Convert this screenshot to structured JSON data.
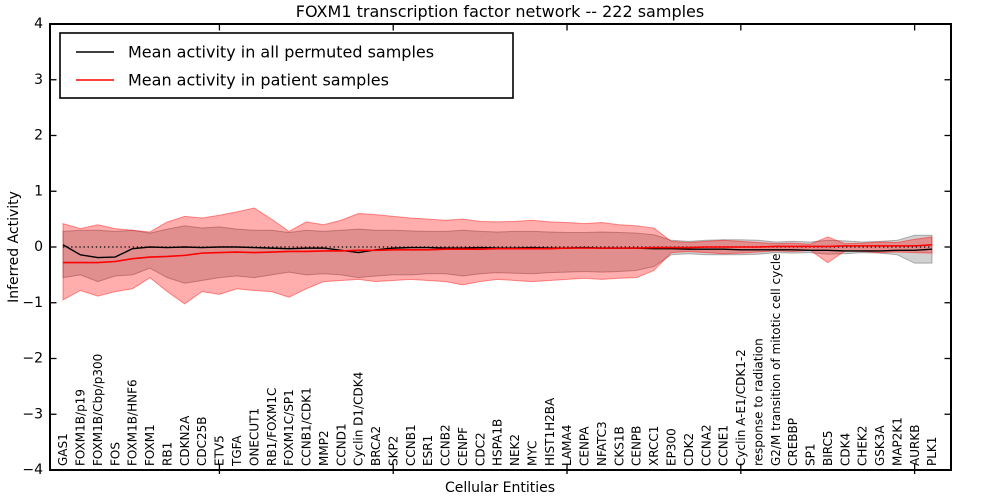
{
  "chart_data": {
    "type": "line",
    "title": "FOXM1 transcription factor network -- 222 samples",
    "sample_count": 222,
    "xlabel": "Cellular Entities",
    "ylabel": "Inferred Activity",
    "ylim": [
      -4,
      4
    ],
    "grid": false,
    "legend_position": "upper left",
    "ytick_values": [
      4,
      3,
      2,
      1,
      0,
      -1,
      -2,
      -3,
      -4
    ],
    "ytick_labels": [
      "4",
      "3",
      "2",
      "1",
      "0",
      "−1",
      "−2",
      "−3",
      "−4"
    ],
    "categories": [
      "GAS1",
      "FOXM1B/p19",
      "FOXM1B/Cbp/p300",
      "FOS",
      "FOXM1B/HNF6",
      "FOXM1",
      "RB1",
      "CDKN2A",
      "CDC25B",
      "ETV5",
      "TGFA",
      "ONECUT1",
      "RB1/FOXM1C",
      "FOXM1C/SP1",
      "CCNB1/CDK1",
      "MMP2",
      "CCND1",
      "Cyclin D1/CDK4",
      "BRCA2",
      "SKP2",
      "CCNB1",
      "ESR1",
      "CCNB2",
      "CENPF",
      "CDC2",
      "HSPA1B",
      "NEK2",
      "MYC",
      "HIST1H2BA",
      "LAMA4",
      "CENPA",
      "NFATC3",
      "CKS1B",
      "CENPB",
      "XRCC1",
      "EP300",
      "CDK2",
      "CCNA2",
      "CCNE1",
      "Cyclin A-E1/CDK1-2",
      "response to radiation",
      "G2/M transition of mitotic cell cycle",
      "CREBBP",
      "SP1",
      "BIRC5",
      "CDK4",
      "CHEK2",
      "GSK3A",
      "MAP2K1",
      "AURKB",
      "PLK1"
    ],
    "major_xtick_positions": [
      10,
      20,
      30,
      40,
      50
    ],
    "zero_line": {
      "value": 0,
      "style": "dotted",
      "color": "#000000"
    },
    "series": [
      {
        "name": "Mean activity in all permuted samples",
        "color": "#000000",
        "line_width": 1.4,
        "values": [
          0.04,
          -0.14,
          -0.19,
          -0.18,
          -0.03,
          0.0,
          -0.01,
          0.0,
          -0.01,
          0.0,
          0.0,
          -0.01,
          -0.02,
          -0.03,
          -0.02,
          -0.02,
          -0.06,
          -0.1,
          -0.05,
          -0.02,
          -0.01,
          -0.01,
          -0.02,
          -0.02,
          -0.01,
          -0.02,
          -0.02,
          -0.01,
          -0.02,
          -0.02,
          -0.01,
          -0.02,
          -0.02,
          -0.02,
          -0.03,
          -0.03,
          -0.04,
          -0.04,
          -0.04,
          -0.05,
          -0.05,
          -0.05,
          -0.05,
          -0.06,
          -0.06,
          -0.07,
          -0.07,
          -0.07,
          -0.06,
          -0.06,
          -0.04
        ]
      },
      {
        "name": "Mean activity in patient samples",
        "color": "#ff0000",
        "line_width": 1.6,
        "values": [
          -0.28,
          -0.28,
          -0.28,
          -0.26,
          -0.21,
          -0.18,
          -0.17,
          -0.15,
          -0.11,
          -0.1,
          -0.09,
          -0.1,
          -0.09,
          -0.08,
          -0.08,
          -0.07,
          -0.07,
          -0.06,
          -0.06,
          -0.05,
          -0.05,
          -0.05,
          -0.04,
          -0.04,
          -0.04,
          -0.03,
          -0.03,
          -0.03,
          -0.03,
          -0.02,
          -0.02,
          -0.02,
          -0.02,
          -0.02,
          -0.01,
          -0.01,
          -0.01,
          0.0,
          0.0,
          0.0,
          0.0,
          0.01,
          0.01,
          0.01,
          0.01,
          0.02,
          0.02,
          0.02,
          0.02,
          0.02,
          0.04
        ]
      }
    ],
    "bands": [
      {
        "name": "permuted-samples-range",
        "color": "#000000",
        "alpha": 0.18,
        "upper": [
          0.28,
          0.3,
          0.3,
          0.28,
          0.3,
          0.25,
          0.32,
          0.38,
          0.34,
          0.36,
          0.32,
          0.3,
          0.3,
          0.26,
          0.3,
          0.28,
          0.3,
          0.32,
          0.3,
          0.3,
          0.29,
          0.28,
          0.28,
          0.3,
          0.28,
          0.27,
          0.28,
          0.28,
          0.27,
          0.26,
          0.26,
          0.27,
          0.26,
          0.25,
          0.22,
          0.12,
          0.1,
          0.12,
          0.13,
          0.13,
          0.12,
          0.09,
          0.1,
          0.09,
          0.12,
          0.11,
          0.09,
          0.1,
          0.12,
          0.21,
          0.21
        ],
        "lower": [
          -0.55,
          -0.5,
          -0.62,
          -0.52,
          -0.5,
          -0.38,
          -0.55,
          -0.65,
          -0.6,
          -0.55,
          -0.52,
          -0.55,
          -0.5,
          -0.45,
          -0.5,
          -0.48,
          -0.5,
          -0.55,
          -0.52,
          -0.5,
          -0.5,
          -0.48,
          -0.48,
          -0.52,
          -0.48,
          -0.46,
          -0.47,
          -0.48,
          -0.46,
          -0.45,
          -0.44,
          -0.45,
          -0.44,
          -0.42,
          -0.35,
          -0.14,
          -0.12,
          -0.14,
          -0.14,
          -0.14,
          -0.13,
          -0.1,
          -0.11,
          -0.1,
          -0.13,
          -0.12,
          -0.1,
          -0.11,
          -0.14,
          -0.29,
          -0.29
        ]
      },
      {
        "name": "patient-samples-range",
        "color": "#ff0000",
        "alpha": 0.32,
        "upper": [
          0.42,
          0.33,
          0.4,
          0.33,
          0.3,
          0.27,
          0.45,
          0.55,
          0.52,
          0.57,
          0.63,
          0.7,
          0.5,
          0.28,
          0.45,
          0.4,
          0.48,
          0.6,
          0.58,
          0.55,
          0.52,
          0.5,
          0.48,
          0.5,
          0.46,
          0.45,
          0.46,
          0.48,
          0.45,
          0.44,
          0.42,
          0.44,
          0.4,
          0.38,
          0.34,
          0.1,
          0.08,
          0.1,
          0.12,
          0.1,
          0.08,
          0.06,
          0.07,
          0.05,
          0.18,
          0.06,
          0.07,
          0.09,
          0.08,
          0.14,
          0.18
        ],
        "lower": [
          -0.95,
          -0.78,
          -0.88,
          -0.8,
          -0.75,
          -0.55,
          -0.8,
          -1.02,
          -0.8,
          -0.85,
          -0.75,
          -0.78,
          -0.8,
          -0.9,
          -0.75,
          -0.62,
          -0.6,
          -0.58,
          -0.62,
          -0.6,
          -0.58,
          -0.6,
          -0.62,
          -0.68,
          -0.62,
          -0.58,
          -0.6,
          -0.62,
          -0.6,
          -0.58,
          -0.56,
          -0.58,
          -0.56,
          -0.55,
          -0.42,
          -0.1,
          -0.08,
          -0.1,
          -0.12,
          -0.11,
          -0.09,
          -0.07,
          -0.08,
          -0.06,
          -0.28,
          -0.07,
          -0.08,
          -0.1,
          -0.09,
          -0.1,
          -0.11
        ]
      }
    ]
  }
}
